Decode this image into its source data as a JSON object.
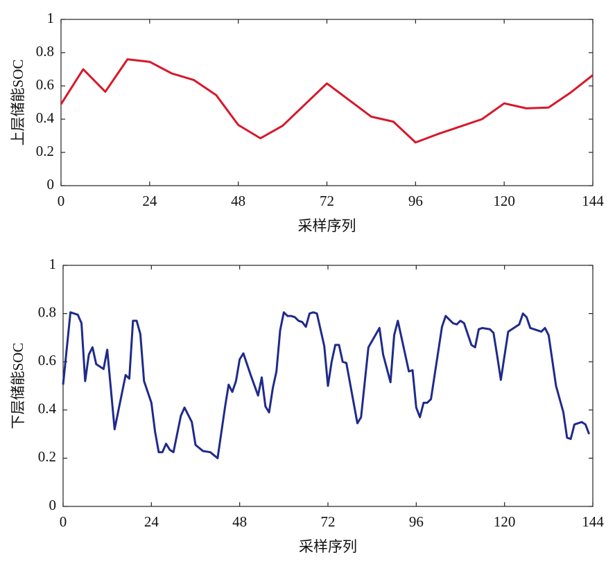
{
  "chart_data": [
    {
      "type": "line",
      "xlabel": "采样序列",
      "ylabel": "上层储能SOC",
      "xlim": [
        0,
        144
      ],
      "xticks": [
        0,
        24,
        48,
        72,
        96,
        120,
        144
      ],
      "ylim": [
        0,
        1
      ],
      "yticks": [
        0,
        0.2,
        0.4,
        0.6,
        0.8,
        1
      ],
      "series": [
        {
          "name": "上层储能SOC",
          "color": "#d7182a",
          "x": [
            0,
            6,
            12,
            18,
            24,
            30,
            36,
            42,
            48,
            54,
            60,
            72,
            78,
            84,
            90,
            96,
            102,
            108,
            114,
            120,
            126,
            132,
            138,
            144
          ],
          "values": [
            0.49,
            0.7,
            0.565,
            0.76,
            0.745,
            0.675,
            0.635,
            0.545,
            0.365,
            0.285,
            0.36,
            0.615,
            0.515,
            0.415,
            0.385,
            0.26,
            0.31,
            0.355,
            0.4,
            0.495,
            0.465,
            0.47,
            0.56,
            0.665
          ]
        }
      ]
    },
    {
      "type": "line",
      "xlabel": "采样序列",
      "ylabel": "下层储能SOC",
      "xlim": [
        0,
        144
      ],
      "xticks": [
        0,
        24,
        48,
        72,
        96,
        120,
        144
      ],
      "ylim": [
        0,
        1
      ],
      "yticks": [
        0,
        0.2,
        0.4,
        0.6,
        0.8,
        1
      ],
      "series": [
        {
          "name": "下层储能SOC",
          "color": "#1f2a8a",
          "x": [
            0,
            2,
            3,
            4,
            5,
            6,
            7,
            8,
            9,
            10,
            11,
            12,
            14,
            17,
            18,
            19,
            20,
            21,
            22,
            24,
            25,
            26,
            27,
            28,
            29,
            30,
            32,
            33,
            35,
            36,
            38,
            40,
            42,
            44,
            45,
            46,
            47,
            48,
            49,
            51,
            53,
            54,
            55,
            56,
            57,
            58,
            59,
            60,
            61,
            62,
            63,
            64,
            65,
            66,
            67,
            68,
            69,
            71,
            72,
            73,
            74,
            75,
            76,
            77,
            80,
            81,
            83,
            86,
            87,
            89,
            90,
            91,
            94,
            95,
            96,
            97,
            98,
            99,
            100,
            103,
            104,
            105,
            106,
            107,
            108,
            109,
            111,
            112,
            113,
            114,
            116,
            117,
            118,
            119,
            121,
            124,
            125,
            126,
            127,
            130,
            131,
            132,
            134,
            136,
            137,
            138,
            139,
            140,
            141,
            142,
            143
          ],
          "values": [
            0.505,
            0.805,
            0.8,
            0.795,
            0.76,
            0.52,
            0.63,
            0.66,
            0.59,
            0.58,
            0.57,
            0.65,
            0.32,
            0.545,
            0.53,
            0.77,
            0.77,
            0.715,
            0.52,
            0.43,
            0.31,
            0.225,
            0.225,
            0.26,
            0.235,
            0.225,
            0.375,
            0.41,
            0.35,
            0.255,
            0.23,
            0.225,
            0.2,
            0.41,
            0.505,
            0.475,
            0.52,
            0.61,
            0.635,
            0.545,
            0.46,
            0.535,
            0.415,
            0.39,
            0.49,
            0.56,
            0.73,
            0.805,
            0.79,
            0.79,
            0.785,
            0.77,
            0.765,
            0.745,
            0.8,
            0.805,
            0.8,
            0.665,
            0.5,
            0.6,
            0.67,
            0.67,
            0.6,
            0.595,
            0.345,
            0.37,
            0.66,
            0.74,
            0.63,
            0.515,
            0.71,
            0.77,
            0.56,
            0.565,
            0.41,
            0.37,
            0.43,
            0.43,
            0.445,
            0.745,
            0.79,
            0.775,
            0.76,
            0.755,
            0.77,
            0.76,
            0.67,
            0.66,
            0.735,
            0.74,
            0.735,
            0.72,
            0.625,
            0.525,
            0.725,
            0.755,
            0.8,
            0.785,
            0.74,
            0.725,
            0.74,
            0.71,
            0.5,
            0.39,
            0.285,
            0.28,
            0.34,
            0.345,
            0.35,
            0.34,
            0.3
          ]
        }
      ]
    }
  ]
}
